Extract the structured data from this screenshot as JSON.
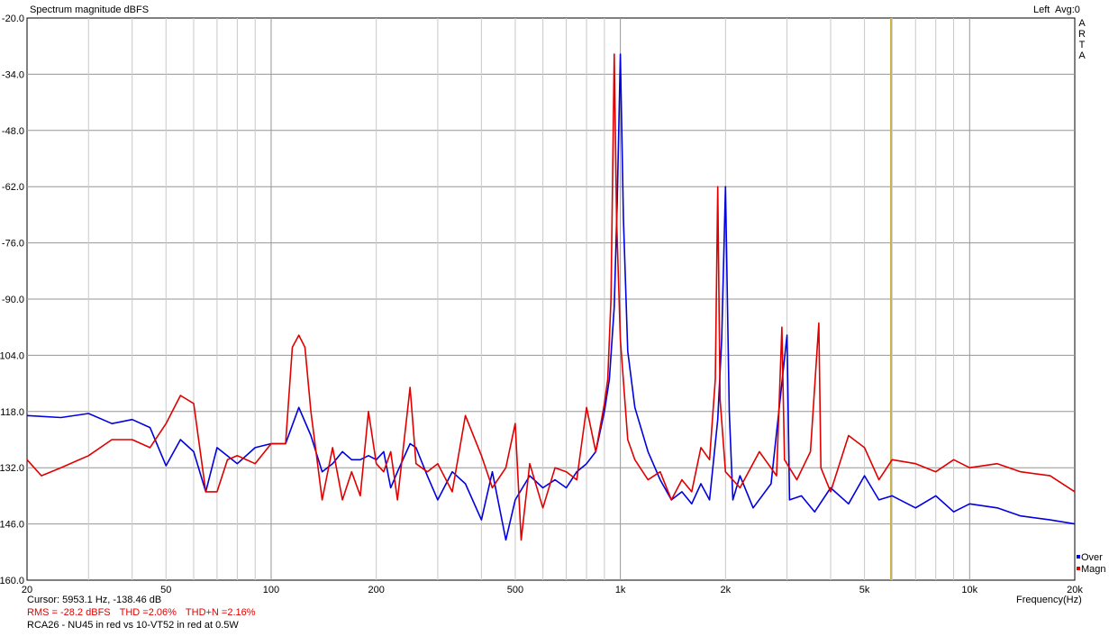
{
  "header": {
    "title": "Spectrum magnitude dBFS",
    "channel": "Left",
    "avg": "Avg:0",
    "brand": [
      "A",
      "R",
      "T",
      "A"
    ]
  },
  "footer": {
    "cursor": "Cursor:  5953.1 Hz, -138.46 dB",
    "rms": "RMS =  -28.2 dBFS",
    "thd": "THD =2.06%",
    "thdn": "THD+N =2.16%",
    "note": "RCA26 - NU45 in red vs 10-VT52 in red at 0.5W"
  },
  "colors": {
    "background": "#ffffff",
    "grid": "#c8c8c8",
    "grid_major": "#969696",
    "blue": "#0000e0",
    "red": "#e00000",
    "cursor": "#c8b44a"
  },
  "chart_data": {
    "type": "line",
    "title": "Spectrum magnitude dBFS",
    "xlabel": "Frequency(Hz)",
    "ylabel": "",
    "xscale": "log",
    "xlim": [
      20,
      20000
    ],
    "ylim": [
      -160,
      -20
    ],
    "grid": true,
    "legend_position": "bottom-right",
    "y_ticks": [
      "-20.0",
      "-34.0",
      "-48.0",
      "-62.0",
      "-76.0",
      "-90.0",
      "-104.0",
      "-118.0",
      "-132.0",
      "-146.0",
      "-160.0"
    ],
    "x_ticks": [
      {
        "v": 20,
        "label": "20"
      },
      {
        "v": 50,
        "label": "50"
      },
      {
        "v": 100,
        "label": "100"
      },
      {
        "v": 200,
        "label": "200"
      },
      {
        "v": 500,
        "label": "500"
      },
      {
        "v": 1000,
        "label": "1k"
      },
      {
        "v": 2000,
        "label": "2k"
      },
      {
        "v": 5000,
        "label": "5k"
      },
      {
        "v": 10000,
        "label": "10k"
      },
      {
        "v": 20000,
        "label": "20k"
      }
    ],
    "cursor_hz": 5953.1,
    "series": [
      {
        "name": "Over",
        "color": "#0000e0",
        "points": [
          [
            20,
            -119
          ],
          [
            25,
            -119.5
          ],
          [
            30,
            -118.5
          ],
          [
            35,
            -121
          ],
          [
            40,
            -120
          ],
          [
            45,
            -122
          ],
          [
            50,
            -131.5
          ],
          [
            55,
            -125
          ],
          [
            60,
            -128
          ],
          [
            65,
            -138
          ],
          [
            70,
            -127
          ],
          [
            80,
            -131
          ],
          [
            90,
            -127
          ],
          [
            100,
            -126
          ],
          [
            110,
            -126
          ],
          [
            120,
            -117
          ],
          [
            130,
            -124
          ],
          [
            140,
            -133
          ],
          [
            150,
            -131
          ],
          [
            160,
            -128
          ],
          [
            170,
            -130
          ],
          [
            180,
            -130
          ],
          [
            190,
            -129
          ],
          [
            200,
            -130
          ],
          [
            210,
            -128
          ],
          [
            220,
            -137
          ],
          [
            230,
            -133
          ],
          [
            250,
            -126
          ],
          [
            260,
            -127
          ],
          [
            280,
            -134
          ],
          [
            300,
            -140
          ],
          [
            330,
            -133
          ],
          [
            360,
            -136
          ],
          [
            400,
            -145
          ],
          [
            430,
            -133
          ],
          [
            470,
            -150
          ],
          [
            500,
            -140
          ],
          [
            550,
            -134
          ],
          [
            600,
            -137
          ],
          [
            650,
            -135
          ],
          [
            700,
            -137
          ],
          [
            750,
            -133
          ],
          [
            800,
            -131
          ],
          [
            850,
            -128
          ],
          [
            900,
            -118
          ],
          [
            930,
            -110
          ],
          [
            960,
            -92
          ],
          [
            980,
            -65
          ],
          [
            1000,
            -29
          ],
          [
            1020,
            -70
          ],
          [
            1050,
            -103
          ],
          [
            1100,
            -117
          ],
          [
            1200,
            -128
          ],
          [
            1300,
            -135
          ],
          [
            1400,
            -140
          ],
          [
            1500,
            -138
          ],
          [
            1600,
            -141
          ],
          [
            1700,
            -136
          ],
          [
            1800,
            -140
          ],
          [
            1900,
            -120
          ],
          [
            1950,
            -100
          ],
          [
            2000,
            -62
          ],
          [
            2050,
            -118
          ],
          [
            2100,
            -140
          ],
          [
            2200,
            -134
          ],
          [
            2400,
            -142
          ],
          [
            2700,
            -136
          ],
          [
            3000,
            -99
          ],
          [
            3050,
            -140
          ],
          [
            3300,
            -139
          ],
          [
            3600,
            -143
          ],
          [
            4000,
            -137
          ],
          [
            4500,
            -141
          ],
          [
            5000,
            -134
          ],
          [
            5500,
            -140
          ],
          [
            6000,
            -139
          ],
          [
            7000,
            -142
          ],
          [
            8000,
            -139
          ],
          [
            9000,
            -143
          ],
          [
            10000,
            -141
          ],
          [
            12000,
            -142
          ],
          [
            14000,
            -144
          ],
          [
            17000,
            -145
          ],
          [
            20000,
            -146
          ]
        ]
      },
      {
        "name": "Magn",
        "color": "#e00000",
        "points": [
          [
            20,
            -130
          ],
          [
            22,
            -134
          ],
          [
            25,
            -132
          ],
          [
            30,
            -129
          ],
          [
            35,
            -125
          ],
          [
            40,
            -125
          ],
          [
            45,
            -127
          ],
          [
            50,
            -121
          ],
          [
            55,
            -114
          ],
          [
            60,
            -116
          ],
          [
            65,
            -138
          ],
          [
            70,
            -138
          ],
          [
            75,
            -130
          ],
          [
            80,
            -129
          ],
          [
            90,
            -131
          ],
          [
            100,
            -126
          ],
          [
            110,
            -126
          ],
          [
            115,
            -102
          ],
          [
            120,
            -99
          ],
          [
            125,
            -102
          ],
          [
            130,
            -118
          ],
          [
            140,
            -140
          ],
          [
            150,
            -127
          ],
          [
            160,
            -140
          ],
          [
            170,
            -133
          ],
          [
            180,
            -139
          ],
          [
            190,
            -118
          ],
          [
            200,
            -131
          ],
          [
            210,
            -133
          ],
          [
            220,
            -128
          ],
          [
            230,
            -140
          ],
          [
            250,
            -112
          ],
          [
            260,
            -131
          ],
          [
            280,
            -133
          ],
          [
            300,
            -131
          ],
          [
            330,
            -138
          ],
          [
            360,
            -119
          ],
          [
            400,
            -129
          ],
          [
            430,
            -137
          ],
          [
            470,
            -132
          ],
          [
            500,
            -121
          ],
          [
            520,
            -150
          ],
          [
            550,
            -131
          ],
          [
            600,
            -142
          ],
          [
            650,
            -132
          ],
          [
            700,
            -133
          ],
          [
            750,
            -135
          ],
          [
            800,
            -117
          ],
          [
            850,
            -128
          ],
          [
            900,
            -116
          ],
          [
            920,
            -110
          ],
          [
            940,
            -90
          ],
          [
            960,
            -29
          ],
          [
            975,
            -70
          ],
          [
            1000,
            -100
          ],
          [
            1050,
            -125
          ],
          [
            1100,
            -130
          ],
          [
            1200,
            -135
          ],
          [
            1300,
            -133
          ],
          [
            1400,
            -140
          ],
          [
            1500,
            -135
          ],
          [
            1600,
            -138
          ],
          [
            1700,
            -127
          ],
          [
            1800,
            -130
          ],
          [
            1870,
            -110
          ],
          [
            1900,
            -62
          ],
          [
            1930,
            -115
          ],
          [
            2000,
            -133
          ],
          [
            2200,
            -137
          ],
          [
            2500,
            -128
          ],
          [
            2800,
            -134
          ],
          [
            2900,
            -97
          ],
          [
            2950,
            -130
          ],
          [
            3200,
            -135
          ],
          [
            3500,
            -128
          ],
          [
            3700,
            -96
          ],
          [
            3750,
            -132
          ],
          [
            4000,
            -138
          ],
          [
            4500,
            -124
          ],
          [
            5000,
            -127
          ],
          [
            5500,
            -135
          ],
          [
            6000,
            -130
          ],
          [
            7000,
            -131
          ],
          [
            8000,
            -133
          ],
          [
            9000,
            -130
          ],
          [
            10000,
            -132
          ],
          [
            12000,
            -131
          ],
          [
            14000,
            -133
          ],
          [
            17000,
            -134
          ],
          [
            20000,
            -138
          ]
        ]
      }
    ]
  }
}
